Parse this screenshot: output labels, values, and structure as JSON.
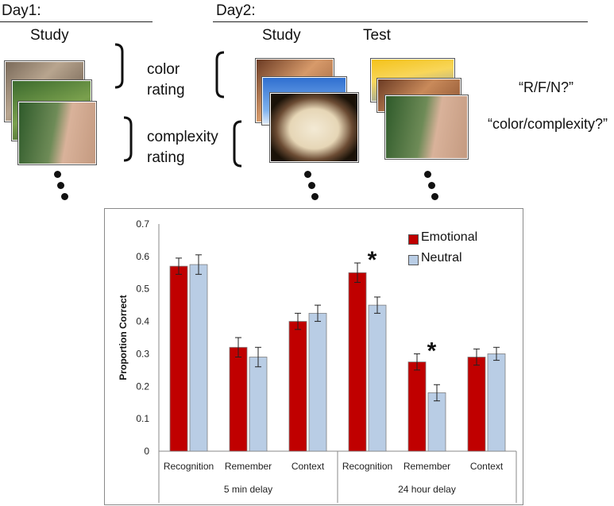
{
  "day1": {
    "title": "Day1:",
    "study": "Study",
    "color_rating": [
      "color",
      "rating"
    ],
    "complexity_rating": [
      "complexity",
      "rating"
    ]
  },
  "day2": {
    "title": "Day2:",
    "study": "Study",
    "test": "Test",
    "prompt_rfn": "“R/F/N?”",
    "prompt_color": "“color/complexity?”"
  },
  "colors": {
    "emotional": "#c00000",
    "neutral": "#b9cde5",
    "bar_edge": "#7f7f7f"
  },
  "chart_data": {
    "type": "bar",
    "ylabel": "Proportion Correct",
    "ylim": [
      0,
      0.7
    ],
    "yticks": [
      "0",
      "0.1",
      "0.2",
      "0.3",
      "0.4",
      "0.5",
      "0.6",
      "0.7"
    ],
    "categories": [
      "Recognition",
      "Remember",
      "Context",
      "Recognition",
      "Remember",
      "Context"
    ],
    "groups": [
      {
        "label": "5 min delay",
        "categories": [
          0,
          1,
          2
        ]
      },
      {
        "label": "24 hour delay",
        "categories": [
          3,
          4,
          5
        ]
      }
    ],
    "series": [
      {
        "name": "Emotional",
        "values": [
          0.57,
          0.32,
          0.4,
          0.55,
          0.275,
          0.29
        ],
        "errors": [
          0.025,
          0.03,
          0.025,
          0.03,
          0.025,
          0.025
        ]
      },
      {
        "name": "Neutral",
        "values": [
          0.575,
          0.29,
          0.425,
          0.45,
          0.18,
          0.3
        ],
        "errors": [
          0.03,
          0.03,
          0.025,
          0.025,
          0.025,
          0.02
        ]
      }
    ],
    "significance": [
      "",
      "",
      "",
      "*",
      "*",
      ""
    ],
    "legend_position": "top-right"
  }
}
